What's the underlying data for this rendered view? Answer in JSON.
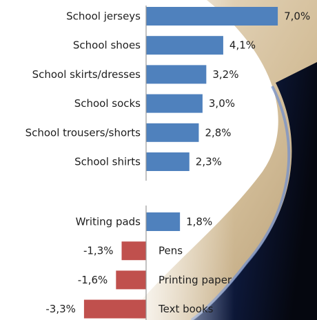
{
  "chart_data": [
    {
      "type": "bar",
      "orientation": "horizontal",
      "categories": [
        "School jerseys",
        "School shoes",
        "School skirts/dresses",
        "School socks",
        "School trousers/shorts",
        "School shirts"
      ],
      "values": [
        7.0,
        4.1,
        3.2,
        3.0,
        2.8,
        2.3
      ],
      "value_labels": [
        "7,0%",
        "4,1%",
        "3,2%",
        "3,0%",
        "2,8%",
        "2,3%"
      ],
      "colors": {
        "positive": "#4f81bd",
        "negative": "#c0504d"
      }
    },
    {
      "type": "bar",
      "orientation": "horizontal",
      "categories": [
        "Writing pads",
        "Pens",
        "Printing paper",
        "Text books"
      ],
      "values": [
        1.8,
        -1.3,
        -1.6,
        -3.3
      ],
      "value_labels": [
        "1,8%",
        "-1,3%",
        "-1,6%",
        "-3,3%"
      ],
      "colors": {
        "positive": "#4f81bd",
        "negative": "#c0504d"
      }
    }
  ]
}
